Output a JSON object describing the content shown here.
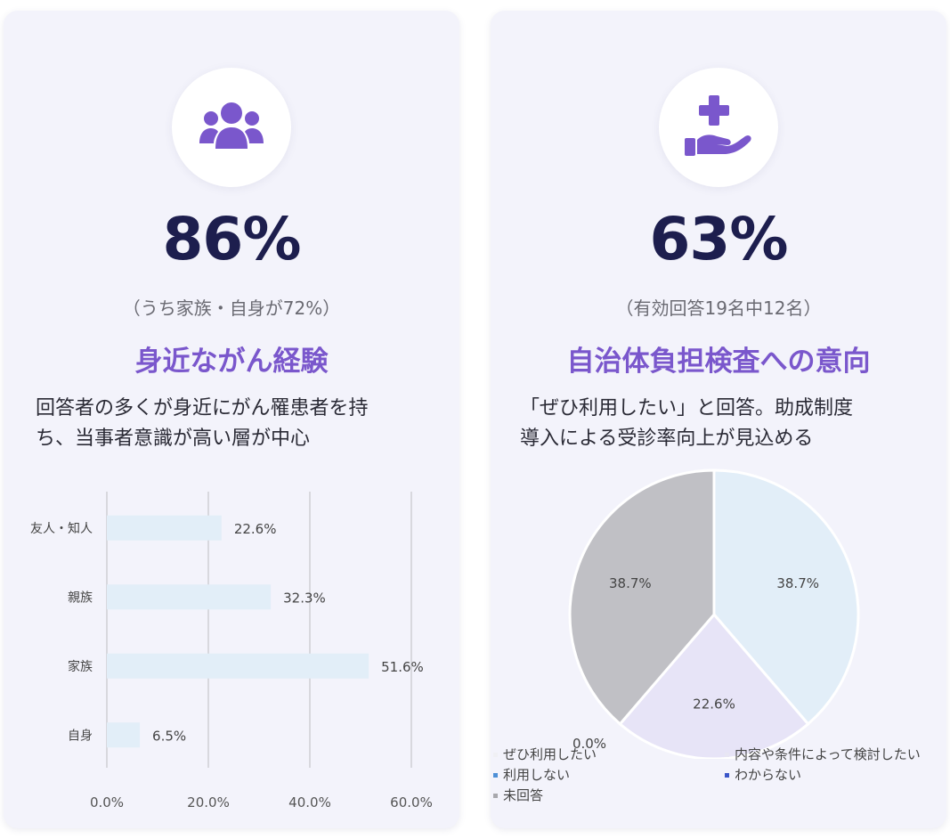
{
  "left_card": {
    "icon": "users-group-icon",
    "big_number": "86%",
    "sub": "（うち家族・自身が72%）",
    "heading": "身近ながん経験",
    "description_line1": "回答者の多くが身近にがん罹患者を持",
    "description_line2": "ち、当事者意識が高い層が中心"
  },
  "right_card": {
    "icon": "hand-medical-cross-icon",
    "big_number": "63%",
    "sub": "（有効回答19名中12名）",
    "heading": "自治体負担検査への意向",
    "description_line1": "「ぜひ利用したい」と回答。助成制度",
    "description_line2": "導入による受診率向上が見込める"
  },
  "colors": {
    "accent": "#7a57cc",
    "number": "#1d1e4e",
    "bar": "#e2eef8",
    "pie_1": "#e2eef8",
    "pie_2": "#e7e4f7",
    "pie_3": "#c0c0c5",
    "legend_1": "#f0f0f4",
    "legend_2": "#e8e6f3",
    "legend_3": "#4d8fd6",
    "legend_4": "#3a55c8",
    "legend_5": "#a8a8ad"
  },
  "chart_data": [
    {
      "type": "bar",
      "orientation": "horizontal",
      "categories": [
        "友人・知人",
        "親族",
        "家族",
        "自身"
      ],
      "values": [
        22.6,
        32.3,
        51.6,
        6.5
      ],
      "value_labels": [
        "22.6%",
        "32.3%",
        "51.6%",
        "6.5%"
      ],
      "xlim": [
        0,
        60
      ],
      "xticks": [
        0,
        20,
        40,
        60
      ],
      "xtick_labels": [
        "0.0%",
        "20.0%",
        "40.0%",
        "60.0%"
      ],
      "grid": true
    },
    {
      "type": "pie",
      "labels": [
        "ぜひ利用したい",
        "内容や条件によって検討したい",
        "利用しない",
        "わからない",
        "未回答"
      ],
      "values": [
        38.7,
        22.6,
        0.0,
        0.0,
        38.7
      ],
      "slice_labels": [
        "38.7%",
        "22.6%",
        "0.0%",
        "",
        "38.7%"
      ],
      "legend_position": "bottom"
    }
  ]
}
